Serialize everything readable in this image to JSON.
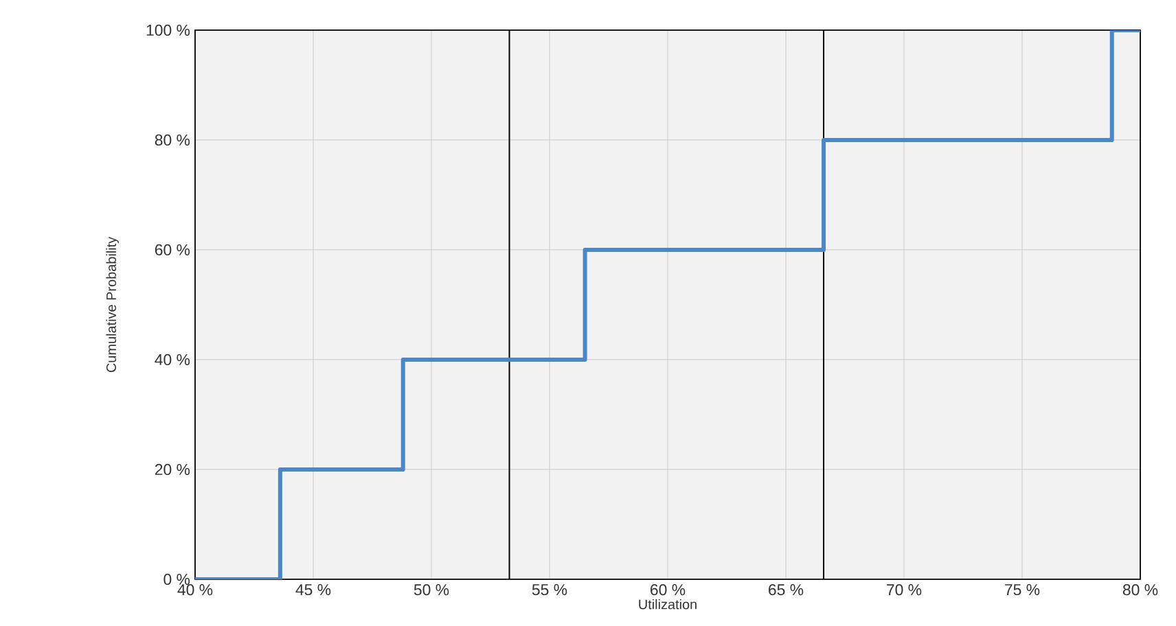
{
  "chart_data": {
    "type": "step",
    "xlabel": "Utilization",
    "ylabel": "Cumulative Probability",
    "x": [
      40,
      43.6,
      48.8,
      56.5,
      66.6,
      78.8,
      80
    ],
    "values": [
      0,
      20,
      40,
      60,
      80,
      100,
      100
    ],
    "color": "#4a86c8",
    "xlim": [
      40,
      80
    ],
    "xticks": [
      {
        "value": 40,
        "label": "40 %"
      },
      {
        "value": 45,
        "label": "45 %"
      },
      {
        "value": 50,
        "label": "50 %"
      },
      {
        "value": 55,
        "label": "55 %"
      },
      {
        "value": 60,
        "label": "60 %"
      },
      {
        "value": 65,
        "label": "65 %"
      },
      {
        "value": 70,
        "label": "70 %"
      },
      {
        "value": 75,
        "label": "75 %"
      },
      {
        "value": 80,
        "label": "80 %"
      }
    ],
    "ylim": [
      0,
      100
    ],
    "yticks": [
      {
        "value": 0,
        "label": "0 %"
      },
      {
        "value": 20,
        "label": "20 %"
      },
      {
        "value": 40,
        "label": "40 %"
      },
      {
        "value": 60,
        "label": "60 %"
      },
      {
        "value": 80,
        "label": "80 %"
      },
      {
        "value": 100,
        "label": "100 %"
      }
    ],
    "ref_lines": [
      {
        "axis": "x",
        "value": 53.3,
        "color": "#000000"
      },
      {
        "axis": "x",
        "value": 66.6,
        "color": "#000000"
      }
    ],
    "grid": true,
    "marker": "none",
    "line_style": "solid"
  }
}
